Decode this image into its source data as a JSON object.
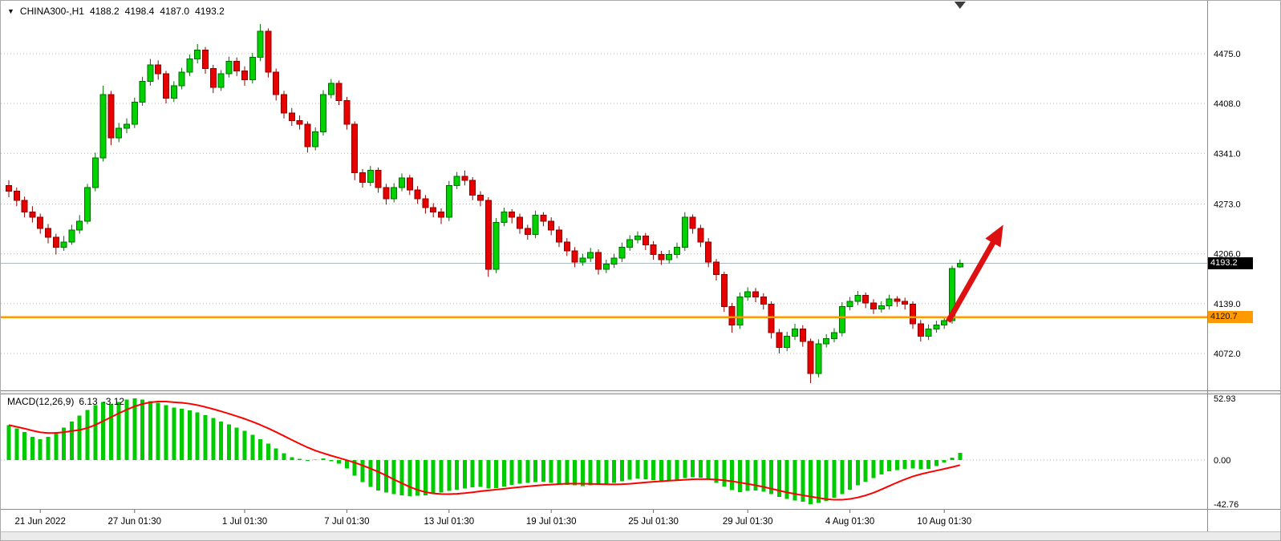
{
  "header": {
    "marker_icon": "▼",
    "symbol_period": "CHINA300-,H1",
    "open": "4188.2",
    "high": "4198.4",
    "low": "4187.0",
    "close": "4193.2"
  },
  "macd_label": {
    "name": "MACD(12,26,9)",
    "main": "6.13",
    "signal": "-3.12"
  },
  "tags": {
    "last": {
      "label": "4193.2"
    },
    "support": {
      "label": "4120.7"
    }
  },
  "colors": {
    "background": "#ffffff",
    "grid": "#bcbcbc",
    "up_fill": "#00d200",
    "up_border": "#006e00",
    "down_fill": "#e80000",
    "down_border": "#8f0000",
    "macd_bar": "#00ca00",
    "signal_line": "#ff0000",
    "support_line": "#ff9900",
    "last_price_line": "#a9bac4",
    "arrow": "#dd1111",
    "axis_text": "#000000"
  },
  "chart_data": {
    "type": "candlestick",
    "symbol": "CHINA300-",
    "timeframe": "H1",
    "panels": [
      "price",
      "macd"
    ],
    "ohlc_last": {
      "open": 4188.2,
      "high": 4198.4,
      "low": 4187.0,
      "close": 4193.2
    },
    "last_close": 4193.2,
    "support_line_price": 4120.7,
    "ylim_main": [
      4032,
      4515
    ],
    "price_axis_ticks": [
      {
        "value": 4475,
        "label": "4475.0"
      },
      {
        "value": 4408,
        "label": "4408.0"
      },
      {
        "value": 4341,
        "label": "4341.0"
      },
      {
        "value": 4273,
        "label": "4273.0"
      },
      {
        "value": 4206,
        "label": "4206.0"
      },
      {
        "value": 4139,
        "label": "4139.0"
      },
      {
        "value": 4072,
        "label": "4072.0"
      }
    ],
    "time_axis_ticks": [
      {
        "index": 4,
        "label": "21 Jun 2022"
      },
      {
        "index": 16,
        "label": "27 Jun 01:30"
      },
      {
        "index": 30,
        "label": "1 Jul 01:30"
      },
      {
        "index": 43,
        "label": "7 Jul 01:30"
      },
      {
        "index": 56,
        "label": "13 Jul 01:30"
      },
      {
        "index": 69,
        "label": "19 Jul 01:30"
      },
      {
        "index": 82,
        "label": "25 Jul 01:30"
      },
      {
        "index": 94,
        "label": "29 Jul 01:30"
      },
      {
        "index": 107,
        "label": "4 Aug 01:30"
      },
      {
        "index": 119,
        "label": "10 Aug 01:30"
      }
    ],
    "candles": [
      [
        4298,
        4305,
        4282,
        4290
      ],
      [
        4290,
        4295,
        4270,
        4278
      ],
      [
        4278,
        4283,
        4255,
        4262
      ],
      [
        4262,
        4270,
        4248,
        4255
      ],
      [
        4255,
        4260,
        4233,
        4240
      ],
      [
        4240,
        4246,
        4220,
        4228
      ],
      [
        4228,
        4233,
        4205,
        4215
      ],
      [
        4215,
        4230,
        4210,
        4222
      ],
      [
        4222,
        4245,
        4218,
        4238
      ],
      [
        4238,
        4258,
        4233,
        4250
      ],
      [
        4250,
        4300,
        4246,
        4295
      ],
      [
        4295,
        4342,
        4290,
        4335
      ],
      [
        4335,
        4432,
        4330,
        4420
      ],
      [
        4420,
        4425,
        4352,
        4362
      ],
      [
        4362,
        4382,
        4356,
        4375
      ],
      [
        4375,
        4388,
        4368,
        4380
      ],
      [
        4380,
        4416,
        4375,
        4410
      ],
      [
        4410,
        4444,
        4405,
        4438
      ],
      [
        4438,
        4468,
        4432,
        4460
      ],
      [
        4460,
        4466,
        4440,
        4448
      ],
      [
        4448,
        4452,
        4408,
        4415
      ],
      [
        4415,
        4438,
        4410,
        4432
      ],
      [
        4432,
        4456,
        4427,
        4450
      ],
      [
        4450,
        4474,
        4445,
        4468
      ],
      [
        4468,
        4488,
        4462,
        4480
      ],
      [
        4480,
        4484,
        4448,
        4455
      ],
      [
        4455,
        4460,
        4422,
        4430
      ],
      [
        4430,
        4453,
        4425,
        4448
      ],
      [
        4448,
        4471,
        4443,
        4465
      ],
      [
        4465,
        4470,
        4445,
        4452
      ],
      [
        4452,
        4458,
        4432,
        4440
      ],
      [
        4440,
        4476,
        4435,
        4470
      ],
      [
        4470,
        4515,
        4465,
        4505
      ],
      [
        4505,
        4509,
        4443,
        4450
      ],
      [
        4450,
        4455,
        4412,
        4420
      ],
      [
        4420,
        4425,
        4388,
        4395
      ],
      [
        4395,
        4402,
        4378,
        4385
      ],
      [
        4385,
        4392,
        4373,
        4380
      ],
      [
        4380,
        4384,
        4342,
        4350
      ],
      [
        4350,
        4376,
        4345,
        4370
      ],
      [
        4370,
        4426,
        4365,
        4420
      ],
      [
        4420,
        4441,
        4415,
        4435
      ],
      [
        4435,
        4439,
        4406,
        4412
      ],
      [
        4412,
        4417,
        4373,
        4380
      ],
      [
        4380,
        4384,
        4305,
        4315
      ],
      [
        4315,
        4320,
        4295,
        4302
      ],
      [
        4302,
        4324,
        4297,
        4318
      ],
      [
        4318,
        4322,
        4288,
        4295
      ],
      [
        4295,
        4300,
        4272,
        4280
      ],
      [
        4280,
        4301,
        4275,
        4295
      ],
      [
        4295,
        4314,
        4290,
        4308
      ],
      [
        4308,
        4312,
        4285,
        4292
      ],
      [
        4292,
        4297,
        4273,
        4280
      ],
      [
        4280,
        4285,
        4260,
        4268
      ],
      [
        4268,
        4274,
        4255,
        4262
      ],
      [
        4262,
        4267,
        4246,
        4255
      ],
      [
        4255,
        4304,
        4250,
        4298
      ],
      [
        4298,
        4316,
        4293,
        4310
      ],
      [
        4310,
        4318,
        4298,
        4305
      ],
      [
        4305,
        4309,
        4278,
        4285
      ],
      [
        4285,
        4290,
        4270,
        4278
      ],
      [
        4278,
        4282,
        4175,
        4185
      ],
      [
        4185,
        4254,
        4180,
        4248
      ],
      [
        4248,
        4268,
        4243,
        4262
      ],
      [
        4262,
        4266,
        4247,
        4255
      ],
      [
        4255,
        4260,
        4233,
        4240
      ],
      [
        4240,
        4245,
        4225,
        4232
      ],
      [
        4232,
        4264,
        4227,
        4258
      ],
      [
        4258,
        4262,
        4243,
        4250
      ],
      [
        4250,
        4255,
        4231,
        4238
      ],
      [
        4238,
        4243,
        4215,
        4222
      ],
      [
        4222,
        4227,
        4203,
        4210
      ],
      [
        4210,
        4215,
        4188,
        4195
      ],
      [
        4195,
        4206,
        4190,
        4200
      ],
      [
        4200,
        4214,
        4195,
        4208
      ],
      [
        4208,
        4212,
        4178,
        4185
      ],
      [
        4185,
        4198,
        4180,
        4192
      ],
      [
        4192,
        4206,
        4187,
        4200
      ],
      [
        4200,
        4221,
        4195,
        4215
      ],
      [
        4215,
        4231,
        4210,
        4225
      ],
      [
        4225,
        4236,
        4220,
        4230
      ],
      [
        4230,
        4234,
        4211,
        4218
      ],
      [
        4218,
        4223,
        4198,
        4205
      ],
      [
        4205,
        4210,
        4191,
        4198
      ],
      [
        4198,
        4211,
        4193,
        4205
      ],
      [
        4205,
        4221,
        4200,
        4215
      ],
      [
        4215,
        4262,
        4210,
        4255
      ],
      [
        4255,
        4259,
        4233,
        4240
      ],
      [
        4240,
        4245,
        4215,
        4222
      ],
      [
        4222,
        4227,
        4188,
        4195
      ],
      [
        4195,
        4199,
        4170,
        4178
      ],
      [
        4178,
        4182,
        4128,
        4135
      ],
      [
        4135,
        4140,
        4100,
        4110
      ],
      [
        4110,
        4154,
        4105,
        4148
      ],
      [
        4148,
        4161,
        4143,
        4155
      ],
      [
        4155,
        4160,
        4141,
        4148
      ],
      [
        4148,
        4153,
        4131,
        4138
      ],
      [
        4138,
        4142,
        4092,
        4100
      ],
      [
        4100,
        4105,
        4072,
        4080
      ],
      [
        4080,
        4101,
        4075,
        4095
      ],
      [
        4095,
        4112,
        4090,
        4105
      ],
      [
        4105,
        4110,
        4081,
        4088
      ],
      [
        4088,
        4092,
        4032,
        4045
      ],
      [
        4045,
        4091,
        4040,
        4085
      ],
      [
        4085,
        4098,
        4080,
        4092
      ],
      [
        4092,
        4106,
        4087,
        4100
      ],
      [
        4100,
        4141,
        4095,
        4135
      ],
      [
        4135,
        4148,
        4130,
        4142
      ],
      [
        4142,
        4156,
        4137,
        4150
      ],
      [
        4150,
        4154,
        4133,
        4140
      ],
      [
        4140,
        4145,
        4125,
        4132
      ],
      [
        4132,
        4142,
        4127,
        4136
      ],
      [
        4136,
        4151,
        4131,
        4145
      ],
      [
        4145,
        4149,
        4135,
        4142
      ],
      [
        4142,
        4147,
        4131,
        4138
      ],
      [
        4138,
        4142,
        4105,
        4112
      ],
      [
        4112,
        4117,
        4088,
        4095
      ],
      [
        4095,
        4111,
        4090,
        4105
      ],
      [
        4105,
        4116,
        4100,
        4110
      ],
      [
        4110,
        4121,
        4105,
        4116
      ],
      [
        4116,
        4190,
        4112,
        4186
      ],
      [
        4188.2,
        4198.4,
        4187.0,
        4193.2
      ]
    ],
    "macd": {
      "params": "12,26,9",
      "last_main": 6.13,
      "last_signal": -3.12,
      "signal_period": 9,
      "ylim": [
        -42.76,
        52.93
      ],
      "axis_ticks": [
        {
          "value": 52.93,
          "label": "52.93"
        },
        {
          "value": 0,
          "label": "0.00"
        },
        {
          "value": -42.76,
          "label": "-42.76"
        }
      ],
      "histogram": [
        30,
        27,
        24,
        20,
        18,
        20,
        24,
        28,
        33,
        38,
        43,
        47,
        50,
        48,
        50,
        52,
        52.93,
        52,
        50.5,
        49,
        47,
        45,
        44,
        42.5,
        41,
        38.5,
        36,
        33,
        30.5,
        28,
        25,
        21.5,
        18,
        14,
        10,
        6,
        2.5,
        1,
        -0.5,
        0.5,
        1.5,
        -1,
        -3.5,
        -8,
        -15,
        -21.5,
        -26,
        -29.5,
        -31.5,
        -33,
        -34,
        -35,
        -34.5,
        -34,
        -33,
        -31.5,
        -30,
        -28.5,
        -27.5,
        -26.5,
        -26,
        -27.5,
        -27,
        -25.5,
        -24,
        -23,
        -22,
        -21.5,
        -21,
        -22,
        -23,
        -24,
        -24.5,
        -25,
        -24.5,
        -24,
        -23,
        -22,
        -20.5,
        -19,
        -18,
        -18.5,
        -19.5,
        -20,
        -19.5,
        -19,
        -17.5,
        -16.5,
        -17,
        -19,
        -22,
        -25.5,
        -29,
        -31,
        -30,
        -29.5,
        -30.5,
        -33,
        -35.5,
        -37.5,
        -39,
        -40.5,
        -42.76,
        -41.5,
        -39.5,
        -36.5,
        -33,
        -28.5,
        -24.5,
        -21,
        -17.5,
        -14,
        -11,
        -9.5,
        -8.5,
        -8,
        -9,
        -8.5,
        -6,
        -2.5,
        2,
        6.13
      ]
    },
    "arrow": {
      "from_index": 119.5,
      "from_price": 4115,
      "to_index": 126.5,
      "to_price": 4245
    }
  }
}
